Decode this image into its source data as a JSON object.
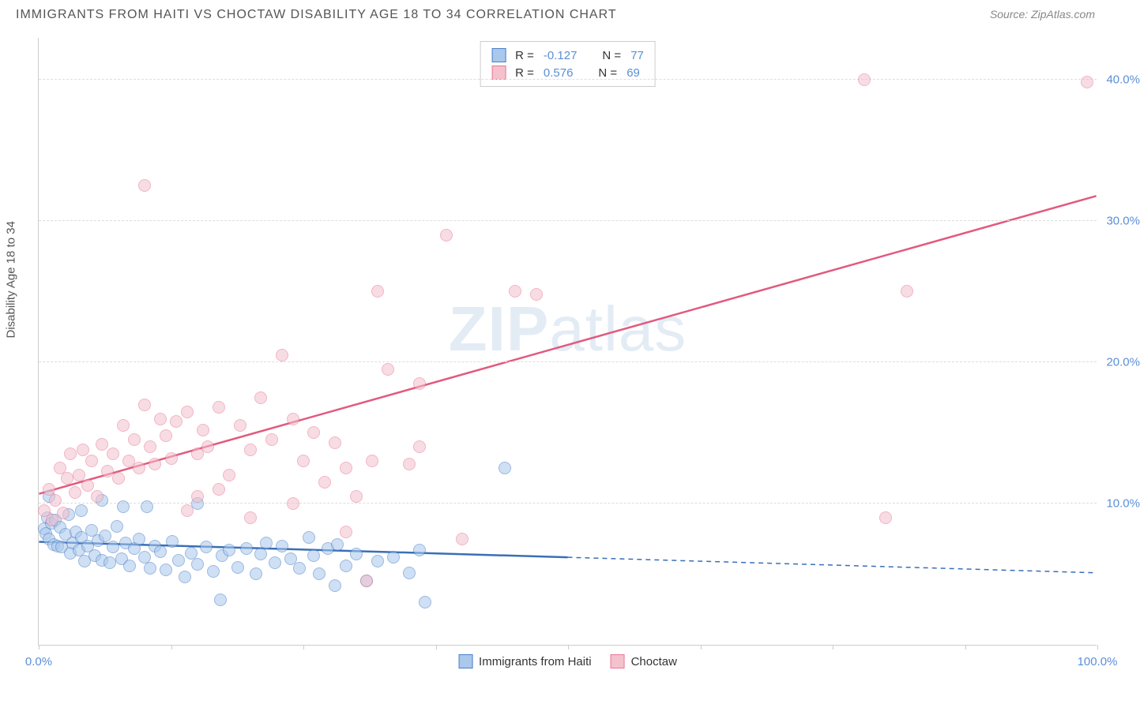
{
  "title": "IMMIGRANTS FROM HAITI VS CHOCTAW DISABILITY AGE 18 TO 34 CORRELATION CHART",
  "source_prefix": "Source: ",
  "source_name": "ZipAtlas.com",
  "y_axis_title": "Disability Age 18 to 34",
  "watermark_heavy": "ZIP",
  "watermark_light": "atlas",
  "chart": {
    "type": "scatter",
    "xlim": [
      0,
      100
    ],
    "ylim": [
      0,
      43
    ],
    "x_tick_positions": [
      0,
      12.5,
      25,
      37.5,
      50,
      62.5,
      75,
      87.5,
      100
    ],
    "x_tick_labels": {
      "0": "0.0%",
      "100": "100.0%"
    },
    "y_gridlines": [
      10,
      20,
      30,
      40
    ],
    "y_tick_labels": {
      "10": "10.0%",
      "20": "20.0%",
      "30": "30.0%",
      "40": "40.0%"
    },
    "background_color": "#ffffff",
    "grid_color": "#dddddd",
    "axis_color": "#cccccc",
    "tick_label_color": "#5b8fd6",
    "marker_radius": 8
  },
  "series": [
    {
      "name": "Immigrants from Haiti",
      "fill": "#a9c8ec",
      "stroke": "#4a7fc7",
      "line_color": "#3a6fb7",
      "R": "-0.127",
      "N": "77",
      "trend": {
        "x1": 0,
        "y1": 7.3,
        "x2": 50,
        "y2": 6.2,
        "dash_from_x": 50,
        "x3": 100,
        "y3": 5.1
      },
      "points": [
        [
          0.5,
          8.2
        ],
        [
          0.7,
          7.9
        ],
        [
          0.8,
          9.0
        ],
        [
          1.0,
          7.5
        ],
        [
          1.2,
          8.6
        ],
        [
          1.4,
          7.1
        ],
        [
          1.6,
          8.8
        ],
        [
          1.8,
          7.0
        ],
        [
          2.0,
          8.3
        ],
        [
          2.2,
          6.9
        ],
        [
          2.5,
          7.8
        ],
        [
          2.8,
          9.2
        ],
        [
          3.0,
          6.5
        ],
        [
          3.2,
          7.2
        ],
        [
          3.5,
          8.0
        ],
        [
          3.8,
          6.7
        ],
        [
          4.0,
          7.6
        ],
        [
          4.3,
          5.9
        ],
        [
          4.6,
          7.0
        ],
        [
          5.0,
          8.1
        ],
        [
          5.3,
          6.3
        ],
        [
          5.6,
          7.4
        ],
        [
          6.0,
          6.0
        ],
        [
          6.3,
          7.7
        ],
        [
          6.7,
          5.8
        ],
        [
          7.0,
          6.9
        ],
        [
          7.4,
          8.4
        ],
        [
          7.8,
          6.1
        ],
        [
          8.2,
          7.2
        ],
        [
          8.6,
          5.6
        ],
        [
          9.0,
          6.8
        ],
        [
          9.5,
          7.5
        ],
        [
          10.0,
          6.2
        ],
        [
          10.5,
          5.4
        ],
        [
          11.0,
          7.0
        ],
        [
          11.5,
          6.6
        ],
        [
          12.0,
          5.3
        ],
        [
          12.6,
          7.3
        ],
        [
          13.2,
          6.0
        ],
        [
          13.8,
          4.8
        ],
        [
          14.4,
          6.5
        ],
        [
          15.0,
          5.7
        ],
        [
          10.2,
          9.8
        ],
        [
          15.8,
          6.9
        ],
        [
          16.5,
          5.2
        ],
        [
          17.2,
          3.2
        ],
        [
          17.3,
          6.3
        ],
        [
          18.0,
          6.7
        ],
        [
          18.8,
          5.5
        ],
        [
          19.6,
          6.8
        ],
        [
          20.5,
          5.0
        ],
        [
          21.0,
          6.4
        ],
        [
          21.5,
          7.2
        ],
        [
          22.3,
          5.8
        ],
        [
          23.0,
          7.0
        ],
        [
          23.8,
          6.1
        ],
        [
          24.6,
          5.4
        ],
        [
          25.5,
          7.6
        ],
        [
          26.0,
          6.3
        ],
        [
          26.5,
          5.0
        ],
        [
          27.3,
          6.8
        ],
        [
          28.0,
          4.2
        ],
        [
          28.2,
          7.1
        ],
        [
          29.0,
          5.6
        ],
        [
          30.0,
          6.4
        ],
        [
          31.0,
          4.5
        ],
        [
          32.0,
          5.9
        ],
        [
          33.5,
          6.2
        ],
        [
          35.0,
          5.1
        ],
        [
          36.0,
          6.7
        ],
        [
          36.5,
          3.0
        ],
        [
          15.0,
          10.0
        ],
        [
          44.0,
          12.5
        ],
        [
          1.0,
          10.5
        ],
        [
          4.0,
          9.5
        ],
        [
          6.0,
          10.2
        ],
        [
          8.0,
          9.8
        ]
      ]
    },
    {
      "name": "Choctaw",
      "fill": "#f4c1cd",
      "stroke": "#e77a95",
      "line_color": "#e15a7e",
      "R": "0.576",
      "N": "69",
      "trend": {
        "x1": 0,
        "y1": 10.7,
        "x2": 100,
        "y2": 31.8
      },
      "points": [
        [
          0.5,
          9.5
        ],
        [
          1.0,
          11.0
        ],
        [
          1.3,
          8.8
        ],
        [
          1.6,
          10.2
        ],
        [
          2.0,
          12.5
        ],
        [
          2.3,
          9.3
        ],
        [
          2.7,
          11.8
        ],
        [
          3.0,
          13.5
        ],
        [
          3.4,
          10.8
        ],
        [
          3.8,
          12.0
        ],
        [
          4.2,
          13.8
        ],
        [
          4.6,
          11.3
        ],
        [
          5.0,
          13.0
        ],
        [
          5.5,
          10.5
        ],
        [
          6.0,
          14.2
        ],
        [
          6.5,
          12.3
        ],
        [
          7.0,
          13.5
        ],
        [
          7.5,
          11.8
        ],
        [
          8.0,
          15.5
        ],
        [
          8.5,
          13.0
        ],
        [
          9.0,
          14.5
        ],
        [
          9.5,
          12.5
        ],
        [
          10.0,
          17.0
        ],
        [
          10.5,
          14.0
        ],
        [
          11.0,
          12.8
        ],
        [
          11.5,
          16.0
        ],
        [
          12.0,
          14.8
        ],
        [
          12.5,
          13.2
        ],
        [
          13.0,
          15.8
        ],
        [
          14.0,
          16.5
        ],
        [
          15.0,
          13.5
        ],
        [
          15.5,
          15.2
        ],
        [
          16.0,
          14.0
        ],
        [
          17.0,
          16.8
        ],
        [
          18.0,
          12.0
        ],
        [
          19.0,
          15.5
        ],
        [
          20.0,
          13.8
        ],
        [
          21.0,
          17.5
        ],
        [
          22.0,
          14.5
        ],
        [
          23.0,
          20.5
        ],
        [
          24.0,
          16.0
        ],
        [
          25.0,
          13.0
        ],
        [
          26.0,
          15.0
        ],
        [
          27.0,
          11.5
        ],
        [
          28.0,
          14.3
        ],
        [
          29.0,
          12.5
        ],
        [
          30.0,
          10.5
        ],
        [
          31.5,
          13.0
        ],
        [
          33.0,
          19.5
        ],
        [
          32.0,
          25.0
        ],
        [
          35.0,
          12.8
        ],
        [
          36.0,
          18.5
        ],
        [
          24.0,
          10.0
        ],
        [
          40.0,
          7.5
        ],
        [
          29.0,
          8.0
        ],
        [
          20.0,
          9.0
        ],
        [
          10.0,
          32.5
        ],
        [
          38.5,
          29.0
        ],
        [
          31.0,
          4.5
        ],
        [
          45.0,
          25.0
        ],
        [
          47.0,
          24.8
        ],
        [
          82.0,
          25.0
        ],
        [
          78.0,
          40.0
        ],
        [
          99.0,
          39.8
        ],
        [
          80.0,
          9.0
        ],
        [
          15.0,
          10.5
        ],
        [
          17.0,
          11.0
        ],
        [
          14.0,
          9.5
        ],
        [
          36.0,
          14.0
        ]
      ]
    }
  ],
  "legend_top": {
    "R_label": "R =",
    "N_label": "N ="
  }
}
